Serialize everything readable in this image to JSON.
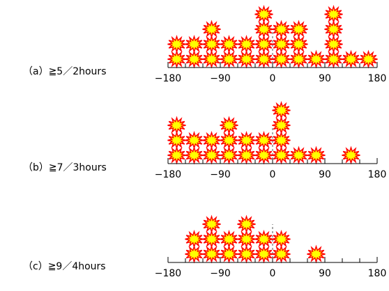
{
  "chart_data": [
    {
      "type": "histogram",
      "label": "（a）≧5／2hours",
      "bins": [
        -180,
        -150,
        -120,
        -90,
        -60,
        -30,
        0,
        30,
        60,
        90,
        120,
        150,
        180
      ],
      "values": [
        2,
        2,
        3,
        2,
        2,
        4,
        3,
        3,
        1,
        4,
        1,
        1
      ],
      "color": "#ffff00",
      "edge_color": "#ff0000",
      "xlim": [
        -180,
        180
      ],
      "xticks": [
        {
          "value": -180,
          "label": "−180"
        },
        {
          "value": -90,
          "label": "−90"
        },
        0,
        90,
        180
      ]
    },
    {
      "type": "histogram",
      "label": "（b）≧7／3hours",
      "bins": [
        -180,
        -150,
        -120,
        -90,
        -60,
        -30,
        0,
        30,
        60,
        90,
        120,
        150,
        180
      ],
      "values": [
        3,
        2,
        2,
        3,
        2,
        2,
        4,
        1,
        1,
        0,
        1,
        0
      ],
      "color": "#ffff00",
      "edge_color": "#ff0000",
      "xlim": [
        -180,
        180
      ],
      "xticks": [
        {
          "value": -180,
          "label": "−180"
        },
        {
          "value": -90,
          "label": "−90"
        },
        0,
        90,
        180
      ]
    },
    {
      "type": "histogram",
      "label": "（c）≧9／4hours",
      "bins": [
        -180,
        -150,
        -120,
        -90,
        -60,
        -30,
        0,
        30,
        60,
        90,
        120,
        150,
        180
      ],
      "values": [
        0,
        2,
        3,
        2,
        3,
        2,
        2,
        0,
        1,
        0,
        0,
        0
      ],
      "color": "#ffff00",
      "edge_color": "#ff0000",
      "xlim": [
        -180,
        180
      ],
      "xticks": [
        {
          "value": -180,
          "label": "−180"
        },
        {
          "value": -90,
          "label": "−90"
        },
        0,
        90,
        180
      ]
    }
  ]
}
